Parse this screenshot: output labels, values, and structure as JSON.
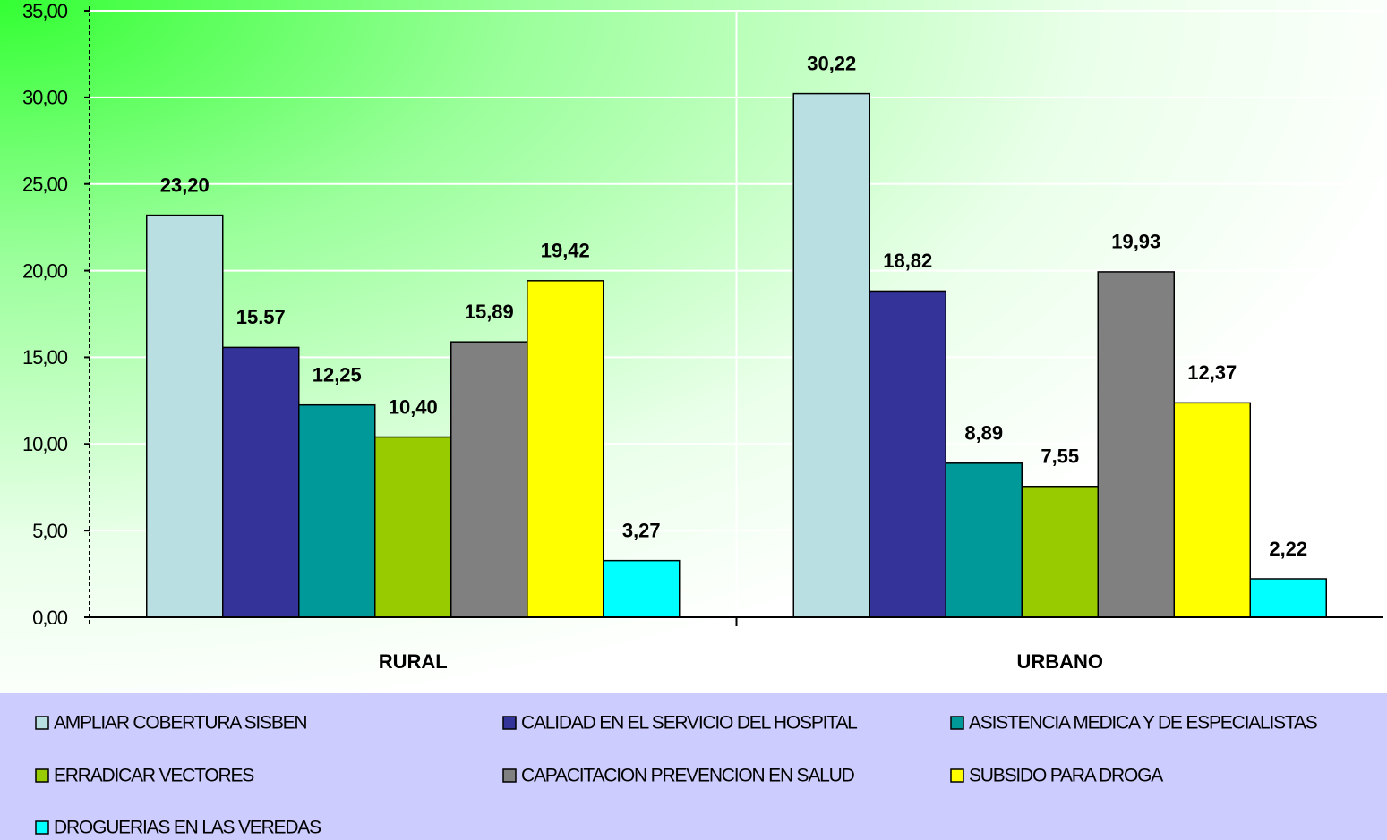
{
  "chart_data": {
    "type": "bar",
    "categories": [
      "RURAL",
      "URBANO"
    ],
    "series": [
      {
        "name": "AMPLIAR COBERTURA SISBEN",
        "color": "#b9dfe2",
        "values": [
          23.2,
          30.22
        ],
        "value_labels": [
          "23,20",
          "30,22"
        ]
      },
      {
        "name": "CALIDAD EN EL SERVICIO DEL HOSPITAL",
        "color": "#333399",
        "values": [
          15.57,
          18.82
        ],
        "value_labels": [
          "15.57",
          "18,82"
        ]
      },
      {
        "name": "ASISTENCIA MEDICA Y DE ESPECIALISTAS",
        "color": "#009999",
        "values": [
          12.25,
          8.89
        ],
        "value_labels": [
          "12,25",
          "8,89"
        ]
      },
      {
        "name": "ERRADICAR VECTORES",
        "color": "#99cc00",
        "values": [
          10.4,
          7.55
        ],
        "value_labels": [
          "10,40",
          "7,55"
        ]
      },
      {
        "name": "CAPACITACION PREVENCION EN SALUD",
        "color": "#808080",
        "values": [
          15.89,
          19.93
        ],
        "value_labels": [
          "15,89",
          "19,93"
        ]
      },
      {
        "name": "SUBSIDO PARA DROGA",
        "color": "#ffff00",
        "values": [
          19.42,
          12.37
        ],
        "value_labels": [
          "19,42",
          "12,37"
        ]
      },
      {
        "name": "DROGUERIAS EN LAS VEREDAS",
        "color": "#00ffff",
        "values": [
          3.27,
          2.22
        ],
        "value_labels": [
          "3,27",
          "2,22"
        ]
      }
    ],
    "ylim": [
      0,
      35
    ],
    "yticks": [
      {
        "value": 0,
        "label": "0,00"
      },
      {
        "value": 5,
        "label": "5,00"
      },
      {
        "value": 10,
        "label": "10,00"
      },
      {
        "value": 15,
        "label": "15,00"
      },
      {
        "value": 20,
        "label": "20,00"
      },
      {
        "value": 25,
        "label": "25,00"
      },
      {
        "value": 30,
        "label": "30,00"
      },
      {
        "value": 35,
        "label": "35,00"
      }
    ],
    "grid": true,
    "legend": "bottom"
  }
}
